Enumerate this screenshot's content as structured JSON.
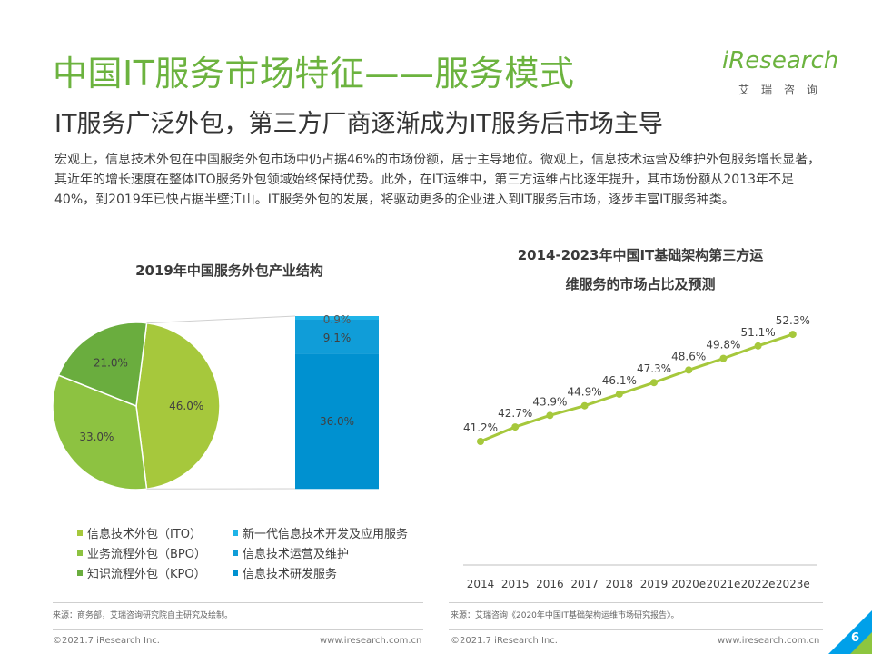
{
  "header": {
    "title": "中国IT服务市场特征——服务模式",
    "subtitle": "IT服务广泛外包，第三方厂商逐渐成为IT服务后市场主导",
    "intro": "宏观上，信息技术外包在中国服务外包市场中仍占据46%的市场份额，居于主导地位。微观上，信息技术运营及维护外包服务增长显著，其近年的增长速度在整体ITO服务外包领域始终保持优势。此外，在IT运维中，第三方运维占比逐年提升，其市场份额从2013年不足40%，到2019年已快占据半壁江山。IT服务外包的发展，将驱动更多的企业进入到IT服务后市场，逐步丰富IT服务种类。"
  },
  "logo": {
    "brand": "iResearch",
    "sub": "艾瑞咨询"
  },
  "colors": {
    "brand_green": "#6cb33f",
    "ito": "#a6c83c",
    "bpo": "#8dc241",
    "kpo": "#6aad3e",
    "new_gen": "#1fb4e8",
    "ops": "#109dd8",
    "rd": "#0091d0",
    "corner_blue": "#00a0e9",
    "corner_green": "#8dc63f"
  },
  "chart_data": [
    {
      "type": "pie",
      "title": "2019年中国服务外包产业结构",
      "slices": [
        {
          "name": "信息技术外包（ITO）",
          "value": 46.0,
          "label": "46.0%",
          "color": "#a6c83c"
        },
        {
          "name": "业务流程外包（BPO）",
          "value": 33.0,
          "label": "33.0%",
          "color": "#8dc241"
        },
        {
          "name": "知识流程外包（KPO）",
          "value": 21.0,
          "label": "21.0%",
          "color": "#6aad3e"
        }
      ],
      "breakdown_bar": {
        "parent": "信息技术外包（ITO）",
        "segments": [
          {
            "name": "新一代信息技术开发及应用服务",
            "value": 0.9,
            "label": "0.9%",
            "color": "#1fb4e8"
          },
          {
            "name": "信息技术运营及维护",
            "value": 9.1,
            "label": "9.1%",
            "color": "#109dd8"
          },
          {
            "name": "信息技术研发服务",
            "value": 36.0,
            "label": "36.0%",
            "color": "#0091d0"
          }
        ]
      },
      "legend": [
        {
          "label": "信息技术外包（ITO）",
          "color": "#a6c83c"
        },
        {
          "label": "新一代信息技术开发及应用服务",
          "color": "#1fb4e8"
        },
        {
          "label": "业务流程外包（BPO）",
          "color": "#8dc241"
        },
        {
          "label": "信息技术运营及维护",
          "color": "#109dd8"
        },
        {
          "label": "知识流程外包（KPO）",
          "color": "#6aad3e"
        },
        {
          "label": "信息技术研发服务",
          "color": "#0091d0"
        }
      ],
      "source": "来源：商务部，艾瑞咨询研究院自主研究及绘制。"
    },
    {
      "type": "line",
      "title_line1": "2014-2023年中国IT基础架构第三方运",
      "title_line2": "维服务的市场占比及预测",
      "categories": [
        "2014",
        "2015",
        "2016",
        "2017",
        "2018",
        "2019",
        "2020e",
        "2021e",
        "2022e",
        "2023e"
      ],
      "values": [
        41.2,
        42.7,
        43.9,
        44.9,
        46.1,
        47.3,
        48.6,
        49.8,
        51.1,
        52.3
      ],
      "labels": [
        "41.2%",
        "42.7%",
        "43.9%",
        "44.9%",
        "46.1%",
        "47.3%",
        "48.6%",
        "49.8%",
        "51.1%",
        "52.3%"
      ],
      "ylim": [
        38,
        54
      ],
      "color": "#a6c83c",
      "source": "来源：艾瑞咨询《2020年中国IT基础架构运维市场研究报告》。"
    }
  ],
  "footer": {
    "left_copyright": "©2021.7 iResearch Inc.",
    "left_url": "www.iresearch.com.cn",
    "right_copyright": "©2021.7 iResearch Inc.",
    "right_url": "www.iresearch.com.cn",
    "page_number": "6"
  }
}
